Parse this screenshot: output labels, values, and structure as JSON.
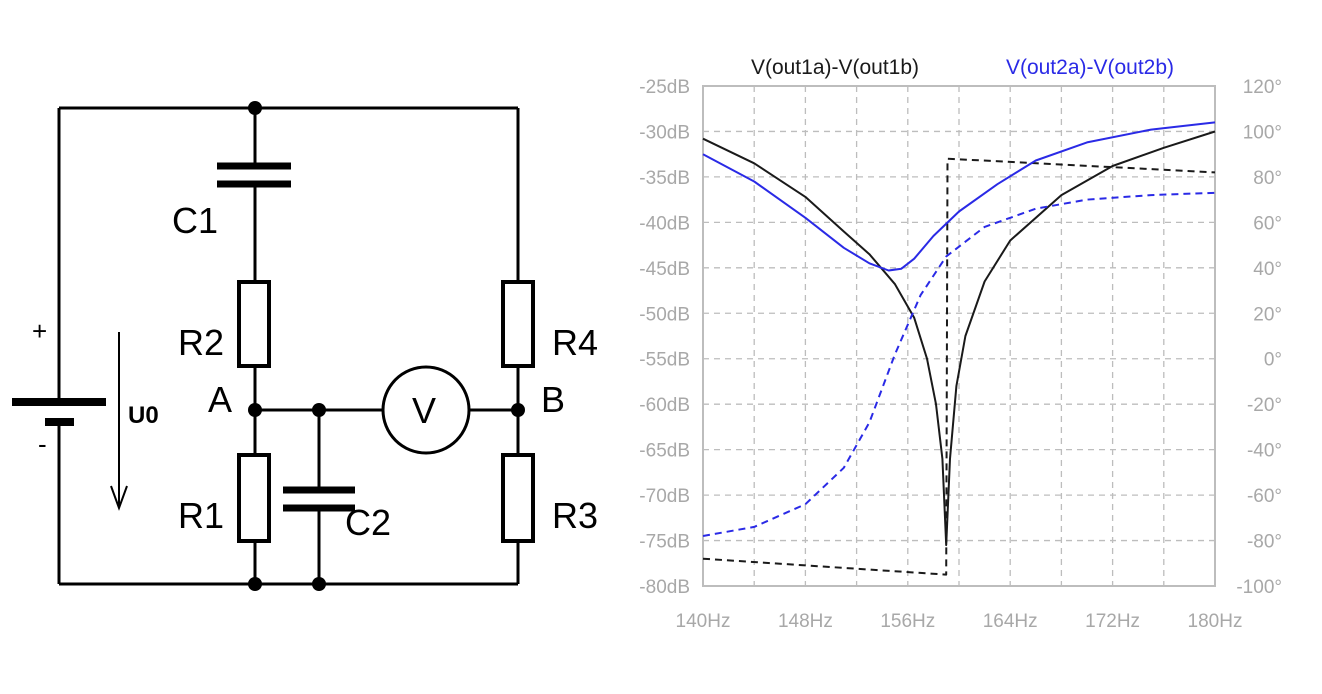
{
  "circuit": {
    "labels": {
      "c1": "C1",
      "c2": "C2",
      "r1": "R1",
      "r2": "R2",
      "r3": "R3",
      "r4": "R4",
      "node_a": "A",
      "node_b": "B",
      "voltmeter": "V",
      "source": "U0",
      "plus": "+",
      "minus": "-"
    }
  },
  "chart_data": {
    "type": "line",
    "title": "",
    "x_ticks": [
      "140Hz",
      "148Hz",
      "156Hz",
      "164Hz",
      "172Hz",
      "180Hz"
    ],
    "y_left_ticks": [
      "-25dB",
      "-30dB",
      "-35dB",
      "-40dB",
      "-45dB",
      "-50dB",
      "-55dB",
      "-60dB",
      "-65dB",
      "-70dB",
      "-75dB",
      "-80dB"
    ],
    "y_right_ticks": [
      "120°",
      "100°",
      "80°",
      "60°",
      "40°",
      "20°",
      "0°",
      "-20°",
      "-40°",
      "-60°",
      "-80°",
      "-100°"
    ],
    "xlim": [
      140,
      180
    ],
    "ylim_left": [
      -80,
      -25
    ],
    "ylim_right": [
      -100,
      120
    ],
    "grid": true,
    "legend": [
      {
        "name": "V(out1a)-V(out1b)",
        "color": "#1a1a1a"
      },
      {
        "name": "V(out2a)-V(out2b)",
        "color": "#2a2ae6"
      }
    ],
    "series": [
      {
        "name": "V(out1a)-V(out1b)",
        "axis": "left",
        "style": "solid",
        "color": "#1a1a1a",
        "x": [
          140,
          144,
          148,
          151,
          153,
          155,
          156.5,
          157.5,
          158.2,
          158.7,
          159,
          159.3,
          159.8,
          160.5,
          162,
          164,
          168,
          172,
          176,
          180
        ],
        "y": [
          -30.8,
          -33.5,
          -37.2,
          -41,
          -43.5,
          -46.8,
          -50.5,
          -55,
          -60,
          -66,
          -75.5,
          -66,
          -58,
          -52.5,
          -46.5,
          -42,
          -37,
          -33.8,
          -31.8,
          -30
        ]
      },
      {
        "name": "V(out1a)-V(out1b) phase",
        "axis": "right",
        "style": "dashed",
        "color": "#1a1a1a",
        "x": [
          140,
          159,
          159.1,
          180
        ],
        "y": [
          -88,
          -95,
          88,
          82
        ]
      },
      {
        "name": "V(out2a)-V(out2b)",
        "axis": "left",
        "style": "solid",
        "color": "#2a2ae6",
        "x": [
          140,
          144,
          148,
          151,
          153,
          154.5,
          155.5,
          156.5,
          158,
          160,
          163,
          166,
          170,
          175,
          180
        ],
        "y": [
          -32.5,
          -35.5,
          -39.5,
          -42.8,
          -44.5,
          -45.3,
          -45.1,
          -44,
          -41.5,
          -38.8,
          -35.8,
          -33.2,
          -31.2,
          -29.8,
          -29
        ]
      },
      {
        "name": "V(out2a)-V(out2b) phase",
        "axis": "right",
        "style": "dashed",
        "color": "#2a2ae6",
        "x": [
          140,
          144,
          148,
          151,
          153,
          155,
          157,
          159,
          162,
          166,
          170,
          175,
          180
        ],
        "y": [
          -78,
          -74,
          -64,
          -48,
          -28,
          2,
          28,
          45,
          58,
          66,
          70,
          72,
          73
        ]
      }
    ]
  }
}
